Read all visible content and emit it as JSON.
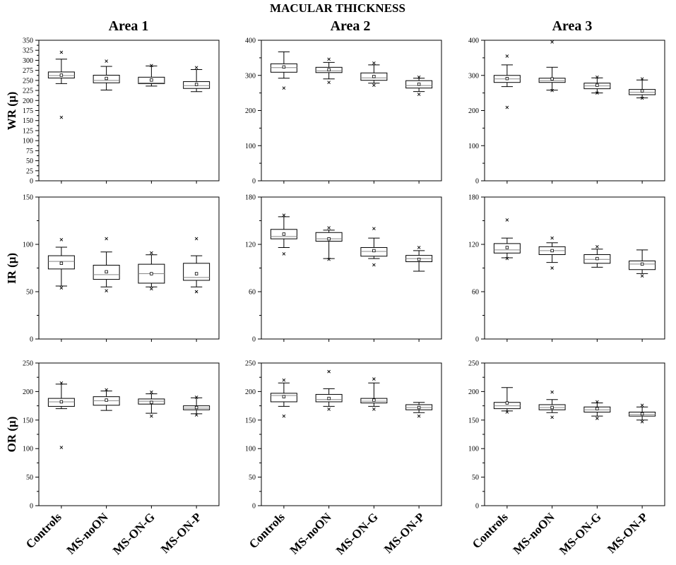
{
  "figure": {
    "title": "MACULAR THICKNESS",
    "columns": [
      "Area 1",
      "Area 2",
      "Area 3"
    ],
    "rows": [
      "WR (μ)",
      "IR (μ)",
      "OR (μ)"
    ],
    "categories": [
      "Controls",
      "MS-noON",
      "MS-ON-G",
      "MS-ON-P"
    ],
    "colors": {
      "axis": "#000000",
      "box_fill": "#ffffff",
      "median": "#888888"
    }
  },
  "chart_data": [
    {
      "type": "box",
      "row_label": "WR (μ)",
      "column_label": "Area 1",
      "ylim": [
        0,
        350
      ],
      "yticks": [
        0,
        25,
        50,
        75,
        100,
        125,
        150,
        175,
        200,
        225,
        250,
        275,
        300,
        325,
        350
      ],
      "categories": [
        "Controls",
        "MS-noON",
        "MS-ON-G",
        "MS-ON-P"
      ],
      "boxes": [
        {
          "q1": 256,
          "median": 262,
          "q3": 271,
          "whisker_low": 242,
          "whisker_high": 303,
          "mean": 263,
          "outliers": [
            320,
            158
          ]
        },
        {
          "q1": 244,
          "median": 250,
          "q3": 263,
          "whisker_low": 226,
          "whisker_high": 285,
          "mean": 255,
          "outliers": [
            298
          ]
        },
        {
          "q1": 242,
          "median": 244,
          "q3": 258,
          "whisker_low": 236,
          "whisker_high": 286,
          "mean": 251,
          "outliers": [
            287
          ]
        },
        {
          "q1": 230,
          "median": 237,
          "q3": 247,
          "whisker_low": 222,
          "whisker_high": 277,
          "mean": 240,
          "outliers": [
            282
          ]
        }
      ]
    },
    {
      "type": "box",
      "row_label": "WR (μ)",
      "column_label": "Area 2",
      "ylim": [
        0,
        400
      ],
      "yticks": [
        0,
        100,
        200,
        300,
        400
      ],
      "categories": [
        "Controls",
        "MS-noON",
        "MS-ON-G",
        "MS-ON-P"
      ],
      "boxes": [
        {
          "q1": 309,
          "median": 322,
          "q3": 333,
          "whisker_low": 292,
          "whisker_high": 367,
          "mean": 324,
          "outliers": [
            264
          ]
        },
        {
          "q1": 308,
          "median": 313,
          "q3": 323,
          "whisker_low": 290,
          "whisker_high": 337,
          "mean": 316,
          "outliers": [
            346,
            280
          ]
        },
        {
          "q1": 286,
          "median": 293,
          "q3": 307,
          "whisker_low": 278,
          "whisker_high": 330,
          "mean": 297,
          "outliers": [
            335,
            272
          ]
        },
        {
          "q1": 264,
          "median": 271,
          "q3": 285,
          "whisker_low": 254,
          "whisker_high": 292,
          "mean": 275,
          "outliers": [
            295,
            246
          ]
        }
      ]
    },
    {
      "type": "box",
      "row_label": "WR (μ)",
      "column_label": "Area 3",
      "ylim": [
        0,
        400
      ],
      "yticks": [
        0,
        100,
        200,
        300,
        400
      ],
      "categories": [
        "Controls",
        "MS-noON",
        "MS-ON-G",
        "MS-ON-P"
      ],
      "boxes": [
        {
          "q1": 280,
          "median": 290,
          "q3": 300,
          "whisker_low": 268,
          "whisker_high": 330,
          "mean": 291,
          "outliers": [
            355,
            209
          ]
        },
        {
          "q1": 280,
          "median": 285,
          "q3": 292,
          "whisker_low": 258,
          "whisker_high": 323,
          "mean": 290,
          "outliers": [
            395,
            257
          ]
        },
        {
          "q1": 262,
          "median": 270,
          "q3": 278,
          "whisker_low": 250,
          "whisker_high": 293,
          "mean": 272,
          "outliers": [
            295,
            250
          ]
        },
        {
          "q1": 245,
          "median": 252,
          "q3": 260,
          "whisker_low": 236,
          "whisker_high": 287,
          "mean": 256,
          "outliers": [
            290,
            235
          ]
        }
      ]
    },
    {
      "type": "box",
      "row_label": "IR (μ)",
      "column_label": "Area 1",
      "ylim": [
        0,
        150
      ],
      "yticks": [
        0,
        50,
        100,
        150
      ],
      "categories": [
        "Controls",
        "MS-noON",
        "MS-ON-G",
        "MS-ON-P"
      ],
      "boxes": [
        {
          "q1": 74,
          "median": 82,
          "q3": 88,
          "whisker_low": 56,
          "whisker_high": 97,
          "mean": 80,
          "outliers": [
            105,
            54
          ]
        },
        {
          "q1": 63,
          "median": 68,
          "q3": 78,
          "whisker_low": 55,
          "whisker_high": 92,
          "mean": 71,
          "outliers": [
            106,
            51
          ]
        },
        {
          "q1": 59,
          "median": 69,
          "q3": 79,
          "whisker_low": 55,
          "whisker_high": 89,
          "mean": 69,
          "outliers": [
            91,
            53
          ]
        },
        {
          "q1": 62,
          "median": 65,
          "q3": 80,
          "whisker_low": 55,
          "whisker_high": 88,
          "mean": 69,
          "outliers": [
            106,
            50
          ]
        }
      ]
    },
    {
      "type": "box",
      "row_label": "IR (μ)",
      "column_label": "Area 2",
      "ylim": [
        0,
        180
      ],
      "yticks": [
        0,
        60,
        120,
        180
      ],
      "categories": [
        "Controls",
        "MS-noON",
        "MS-ON-G",
        "MS-ON-P"
      ],
      "boxes": [
        {
          "q1": 127,
          "median": 130,
          "q3": 139,
          "whisker_low": 116,
          "whisker_high": 155,
          "mean": 133,
          "outliers": [
            157,
            108
          ]
        },
        {
          "q1": 124,
          "median": 127,
          "q3": 135,
          "whisker_low": 102,
          "whisker_high": 138,
          "mean": 127,
          "outliers": [
            141,
            101
          ]
        },
        {
          "q1": 105,
          "median": 111,
          "q3": 116,
          "whisker_low": 102,
          "whisker_high": 128,
          "mean": 112,
          "outliers": [
            140,
            94
          ]
        },
        {
          "q1": 98,
          "median": 102,
          "q3": 106,
          "whisker_low": 86,
          "whisker_high": 112,
          "mean": 101,
          "outliers": [
            116
          ]
        }
      ]
    },
    {
      "type": "box",
      "row_label": "IR (μ)",
      "column_label": "Area 3",
      "ylim": [
        0,
        180
      ],
      "yticks": [
        0,
        60,
        120,
        180
      ],
      "categories": [
        "Controls",
        "MS-noON",
        "MS-ON-G",
        "MS-ON-P"
      ],
      "boxes": [
        {
          "q1": 109,
          "median": 113,
          "q3": 121,
          "whisker_low": 103,
          "whisker_high": 128,
          "mean": 116,
          "outliers": [
            151,
            102
          ]
        },
        {
          "q1": 107,
          "median": 112,
          "q3": 117,
          "whisker_low": 97,
          "whisker_high": 122,
          "mean": 112,
          "outliers": [
            128,
            90
          ]
        },
        {
          "q1": 96,
          "median": 101,
          "q3": 107,
          "whisker_low": 91,
          "whisker_high": 114,
          "mean": 102,
          "outliers": [
            117
          ]
        },
        {
          "q1": 88,
          "median": 95,
          "q3": 99,
          "whisker_low": 83,
          "whisker_high": 113,
          "mean": 95,
          "outliers": [
            80
          ]
        }
      ]
    },
    {
      "type": "box",
      "row_label": "OR (μ)",
      "column_label": "Area 1",
      "ylim": [
        0,
        250
      ],
      "yticks": [
        0,
        50,
        100,
        150,
        200,
        250
      ],
      "categories": [
        "Controls",
        "MS-noON",
        "MS-ON-G",
        "MS-ON-P"
      ],
      "boxes": [
        {
          "q1": 174,
          "median": 182,
          "q3": 188,
          "whisker_low": 170,
          "whisker_high": 213,
          "mean": 182,
          "outliers": [
            215,
            102
          ]
        },
        {
          "q1": 176,
          "median": 184,
          "q3": 191,
          "whisker_low": 167,
          "whisker_high": 201,
          "mean": 185,
          "outliers": [
            203
          ]
        },
        {
          "q1": 178,
          "median": 183,
          "q3": 187,
          "whisker_low": 162,
          "whisker_high": 196,
          "mean": 181,
          "outliers": [
            199,
            157
          ]
        },
        {
          "q1": 168,
          "median": 171,
          "q3": 175,
          "whisker_low": 161,
          "whisker_high": 189,
          "mean": 172,
          "outliers": [
            190,
            159
          ]
        }
      ]
    },
    {
      "type": "box",
      "row_label": "OR (μ)",
      "column_label": "Area 2",
      "ylim": [
        0,
        250
      ],
      "yticks": [
        0,
        50,
        100,
        150,
        200,
        250
      ],
      "categories": [
        "Controls",
        "MS-noON",
        "MS-ON-G",
        "MS-ON-P"
      ],
      "boxes": [
        {
          "q1": 182,
          "median": 193,
          "q3": 197,
          "whisker_low": 174,
          "whisker_high": 215,
          "mean": 191,
          "outliers": [
            220,
            157
          ]
        },
        {
          "q1": 182,
          "median": 186,
          "q3": 195,
          "whisker_low": 174,
          "whisker_high": 205,
          "mean": 188,
          "outliers": [
            235,
            169
          ]
        },
        {
          "q1": 180,
          "median": 183,
          "q3": 188,
          "whisker_low": 174,
          "whisker_high": 215,
          "mean": 185,
          "outliers": [
            222,
            169
          ]
        },
        {
          "q1": 168,
          "median": 172,
          "q3": 177,
          "whisker_low": 163,
          "whisker_high": 181,
          "mean": 172,
          "outliers": [
            157
          ]
        }
      ]
    },
    {
      "type": "box",
      "row_label": "OR (μ)",
      "column_label": "Area 3",
      "ylim": [
        0,
        250
      ],
      "yticks": [
        0,
        50,
        100,
        150,
        200,
        250
      ],
      "categories": [
        "Controls",
        "MS-noON",
        "MS-ON-G",
        "MS-ON-P"
      ],
      "boxes": [
        {
          "q1": 170,
          "median": 175,
          "q3": 181,
          "whisker_low": 166,
          "whisker_high": 207,
          "mean": 180,
          "outliers": [
            164
          ]
        },
        {
          "q1": 168,
          "median": 172,
          "q3": 177,
          "whisker_low": 163,
          "whisker_high": 186,
          "mean": 172,
          "outliers": [
            199,
            155
          ]
        },
        {
          "q1": 164,
          "median": 168,
          "q3": 173,
          "whisker_low": 157,
          "whisker_high": 180,
          "mean": 170,
          "outliers": [
            182,
            153
          ]
        },
        {
          "q1": 157,
          "median": 160,
          "q3": 164,
          "whisker_low": 150,
          "whisker_high": 173,
          "mean": 161,
          "outliers": [
            176,
            147
          ]
        }
      ]
    }
  ]
}
